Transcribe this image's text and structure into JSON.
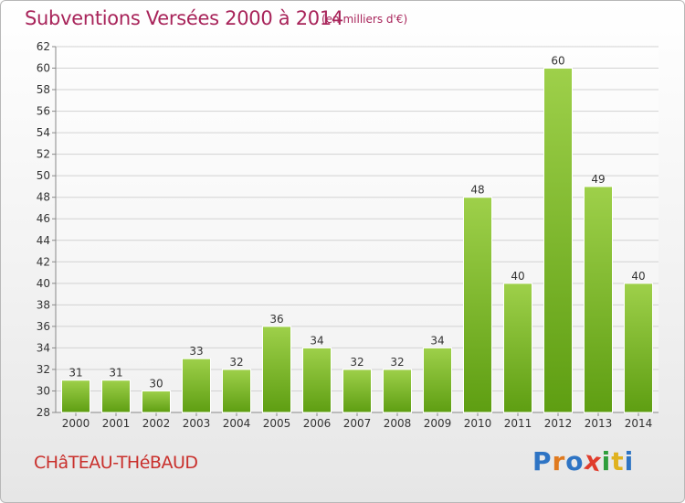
{
  "header": {
    "title": "Subventions Versées 2000 à 2014",
    "subtitle": "(en milliers d'€)"
  },
  "footer": {
    "place": "CHâTEAU-THéBAUD",
    "logo": "Proxiti"
  },
  "colors": {
    "title": "#a8245a",
    "place": "#c9302c",
    "bar_top": "#9ed04a",
    "bar_bottom": "#5e9e12",
    "logo": [
      "#2e74c4",
      "#e07a1f",
      "#2e74c4",
      "#e03c2c",
      "#2e9e3c",
      "#e0b21f",
      "#2e74c4"
    ]
  },
  "chart_data": {
    "type": "bar",
    "title": "Subventions Versées 2000 à 2014",
    "subtitle": "(en milliers d'€)",
    "categories": [
      "2000",
      "2001",
      "2002",
      "2003",
      "2004",
      "2005",
      "2006",
      "2007",
      "2008",
      "2009",
      "2010",
      "2011",
      "2012",
      "2013",
      "2014"
    ],
    "values": [
      31,
      31,
      30,
      33,
      32,
      36,
      34,
      32,
      32,
      34,
      48,
      40,
      60,
      49,
      40
    ],
    "xlabel": "",
    "ylabel": "",
    "ylim": [
      28,
      62
    ],
    "yticks": [
      28,
      30,
      32,
      34,
      36,
      38,
      40,
      42,
      44,
      46,
      48,
      50,
      52,
      54,
      56,
      58,
      60,
      62
    ],
    "grid": true,
    "legend": "none",
    "data_labels": true
  }
}
